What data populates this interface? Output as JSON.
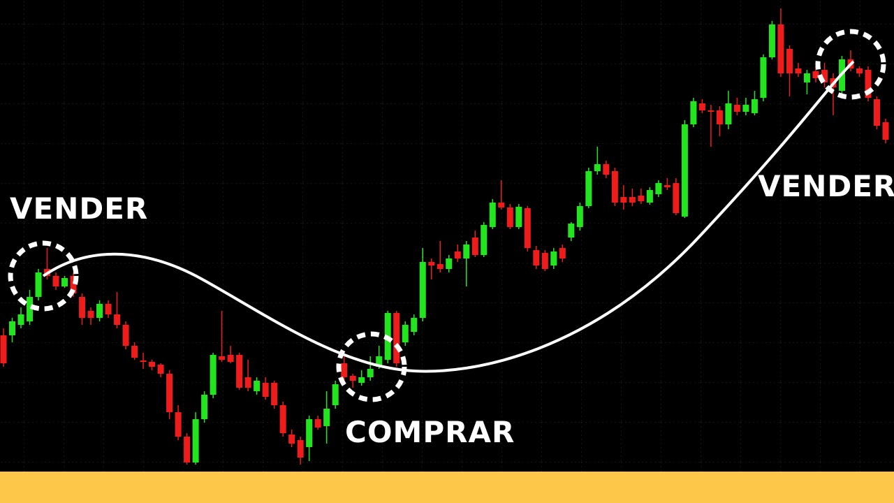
{
  "chart_data": {
    "type": "candlestick",
    "ylim": [
      0,
      675
    ],
    "up_color": "#22e51f",
    "down_color": "#ef1c1c",
    "annotations": [
      "VENDER",
      "COMPRAR",
      "VENDER"
    ],
    "open": [
      195,
      195,
      210,
      215,
      250,
      290,
      280,
      265,
      280,
      250,
      230,
      220,
      240,
      225,
      210,
      180,
      159,
      157,
      153,
      140,
      85,
      50,
      13,
      75,
      110,
      165,
      167,
      167,
      135,
      115,
      127,
      127,
      95,
      53,
      45,
      35,
      75,
      65,
      95,
      155,
      137,
      127,
      135,
      150,
      160,
      227,
      185,
      200,
      220,
      300,
      297,
      290,
      315,
      305,
      335,
      310,
      350,
      385,
      378,
      350,
      377,
      317,
      313,
      295,
      320,
      335,
      350,
      380,
      430,
      440,
      430,
      393,
      393,
      395,
      385,
      397,
      410,
      413,
      365,
      497,
      527,
      517,
      517,
      497,
      525,
      515,
      513,
      535,
      593,
      640,
      605,
      577,
      557,
      573,
      575,
      563,
      545,
      590,
      577,
      575,
      533,
      500
    ],
    "high": [
      205,
      220,
      235,
      260,
      290,
      320,
      285,
      280,
      285,
      255,
      235,
      245,
      245,
      257,
      215,
      185,
      170,
      160,
      155,
      145,
      95,
      55,
      85,
      115,
      170,
      230,
      180,
      170,
      160,
      135,
      135,
      130,
      100,
      60,
      50,
      80,
      80,
      115,
      130,
      165,
      140,
      145,
      165,
      180,
      230,
      230,
      215,
      225,
      320,
      305,
      330,
      310,
      325,
      330,
      345,
      357,
      390,
      417,
      383,
      383,
      380,
      323,
      317,
      320,
      325,
      357,
      385,
      435,
      465,
      445,
      435,
      410,
      405,
      405,
      407,
      417,
      420,
      420,
      503,
      535,
      533,
      525,
      523,
      545,
      535,
      535,
      545,
      597,
      645,
      663,
      610,
      585,
      575,
      580,
      585,
      570,
      595,
      603,
      580,
      580,
      537,
      505
    ],
    "low": [
      150,
      185,
      205,
      210,
      245,
      275,
      260,
      263,
      250,
      210,
      210,
      215,
      220,
      205,
      175,
      160,
      147,
      145,
      135,
      75,
      45,
      10,
      10,
      70,
      105,
      157,
      155,
      117,
      115,
      110,
      103,
      90,
      50,
      35,
      10,
      15,
      60,
      40,
      90,
      130,
      120,
      123,
      130,
      147,
      155,
      150,
      180,
      195,
      215,
      275,
      285,
      285,
      300,
      265,
      307,
      307,
      347,
      375,
      347,
      347,
      315,
      290,
      287,
      290,
      300,
      330,
      345,
      377,
      425,
      420,
      380,
      375,
      380,
      383,
      382,
      393,
      403,
      367,
      363,
      493,
      513,
      465,
      480,
      490,
      510,
      510,
      510,
      530,
      590,
      565,
      537,
      565,
      540,
      557,
      550,
      510,
      540,
      573,
      565,
      530,
      490,
      470
    ],
    "close": [
      155,
      215,
      225,
      250,
      285,
      280,
      265,
      277,
      255,
      220,
      220,
      240,
      225,
      210,
      180,
      163,
      157,
      150,
      140,
      85,
      50,
      13,
      75,
      110,
      167,
      160,
      157,
      120,
      120,
      130,
      107,
      95,
      55,
      40,
      20,
      75,
      63,
      90,
      125,
      135,
      130,
      135,
      147,
      165,
      227,
      155,
      210,
      220,
      300,
      295,
      290,
      305,
      305,
      325,
      310,
      353,
      385,
      378,
      350,
      379,
      320,
      295,
      290,
      315,
      305,
      355,
      380,
      430,
      440,
      425,
      385,
      385,
      385,
      387,
      403,
      413,
      407,
      370,
      497,
      530,
      517,
      515,
      497,
      527,
      515,
      525,
      533,
      593,
      640,
      570,
      570,
      570,
      570,
      563,
      557,
      550,
      590,
      577,
      570,
      535,
      495,
      475
    ]
  }
}
